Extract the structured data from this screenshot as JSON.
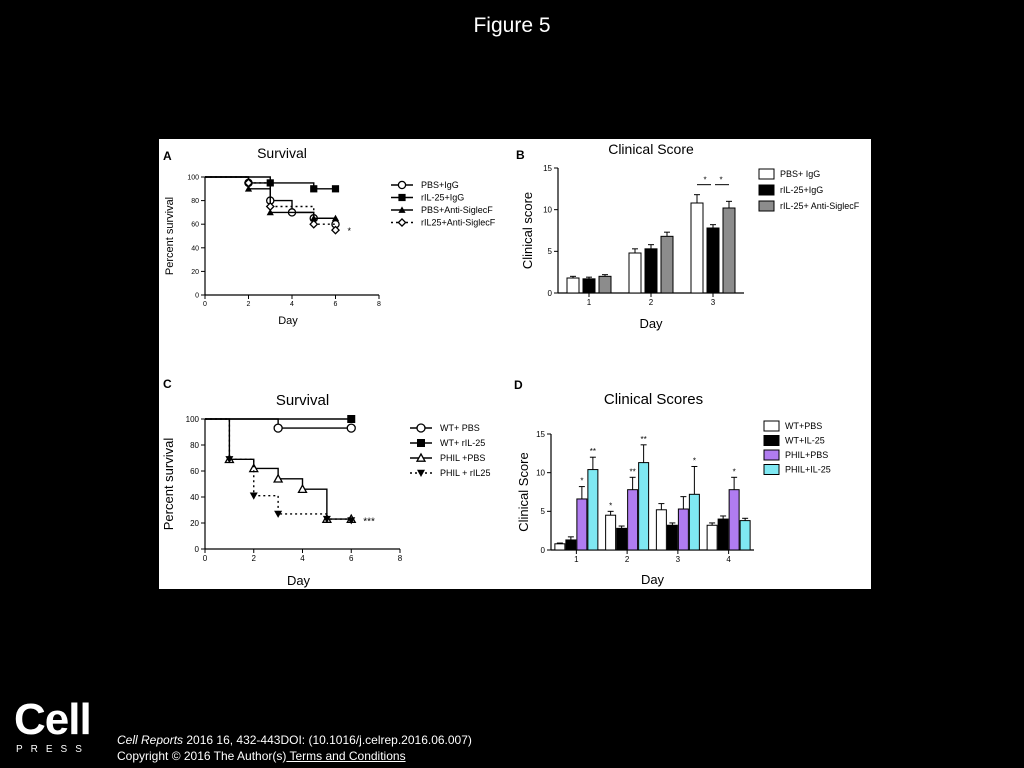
{
  "slide_title": "Figure 5",
  "footer": {
    "logo_word": "Cell",
    "logo_sub": "PRESS",
    "journal": "Cell Reports",
    "citation_rest": " 2016 16, 432-443DOI: (10.1016/j.celrep.2016.06.007)",
    "copyright": "Copyright © 2016 The Author(s)",
    "terms_link": " Terms and Conditions"
  },
  "colors": {
    "white_bar": "#ffffff",
    "black_bar": "#000000",
    "gray_bar": "#8c8c8c",
    "purple_bar": "#b07cf0",
    "cyan_bar": "#7fe8f2"
  },
  "chart_data": [
    {
      "panel": "A",
      "type": "line",
      "title": "Survival",
      "xlabel": "Day",
      "ylabel": "Percent survival",
      "xlim": [
        0,
        8
      ],
      "ylim": [
        0,
        100
      ],
      "xticks": [
        "0",
        "2",
        "4",
        "6",
        "8"
      ],
      "yticks": [
        "0",
        "20",
        "40",
        "60",
        "80",
        "100"
      ],
      "annotation": "*",
      "series": [
        {
          "name": "PBS+IgG",
          "marker": "circle-open",
          "style": "solid",
          "points": [
            [
              0,
              100
            ],
            [
              2,
              95
            ],
            [
              3,
              80
            ],
            [
              4,
              70
            ],
            [
              5,
              65
            ],
            [
              6,
              60
            ]
          ]
        },
        {
          "name": "rIL-25+IgG",
          "marker": "square-filled",
          "style": "solid",
          "points": [
            [
              0,
              100
            ],
            [
              3,
              95
            ],
            [
              5,
              90
            ],
            [
              6,
              90
            ]
          ]
        },
        {
          "name": "PBS+Anti-SiglecF",
          "marker": "triangle-filled",
          "style": "solid",
          "points": [
            [
              0,
              100
            ],
            [
              2,
              90
            ],
            [
              3,
              70
            ],
            [
              5,
              65
            ],
            [
              6,
              65
            ]
          ]
        },
        {
          "name": "rIL25+Anti-SiglecF",
          "marker": "diamond-open",
          "style": "dotted",
          "points": [
            [
              0,
              100
            ],
            [
              2,
              95
            ],
            [
              3,
              75
            ],
            [
              5,
              60
            ],
            [
              6,
              55
            ]
          ]
        }
      ]
    },
    {
      "panel": "B",
      "type": "bar",
      "title": "Clinical Score",
      "xlabel": "Day",
      "ylabel": "Clinical score",
      "ylim": [
        0,
        15
      ],
      "yticks": [
        "0",
        "5",
        "10",
        "15"
      ],
      "categories": [
        "1",
        "2",
        "3"
      ],
      "annotations": [
        "*",
        "*"
      ],
      "series": [
        {
          "name": "PBS+ IgG",
          "color": "#ffffff",
          "values": [
            1.8,
            4.8,
            10.8
          ],
          "errors": [
            0.2,
            0.5,
            1.0
          ]
        },
        {
          "name": "rIL-25+IgG",
          "color": "#000000",
          "values": [
            1.7,
            5.3,
            7.8
          ],
          "errors": [
            0.2,
            0.5,
            0.4
          ]
        },
        {
          "name": "rIL-25+ Anti-SiglecF",
          "color": "#8c8c8c",
          "values": [
            2.0,
            6.8,
            10.2
          ],
          "errors": [
            0.2,
            0.5,
            0.8
          ]
        }
      ]
    },
    {
      "panel": "C",
      "type": "line",
      "title": "Survival",
      "xlabel": "Day",
      "ylabel": "Percent survival",
      "xlim": [
        0,
        8
      ],
      "ylim": [
        0,
        100
      ],
      "xticks": [
        "0",
        "2",
        "4",
        "6",
        "8"
      ],
      "yticks": [
        "0",
        "20",
        "40",
        "60",
        "80",
        "100"
      ],
      "annotation": "***",
      "series": [
        {
          "name": "WT+ PBS",
          "marker": "circle-open",
          "style": "solid",
          "points": [
            [
              0,
              100
            ],
            [
              3,
              93
            ],
            [
              6,
              93
            ]
          ]
        },
        {
          "name": "WT+ rIL-25",
          "marker": "square-filled",
          "style": "solid",
          "points": [
            [
              0,
              100
            ],
            [
              6,
              100
            ]
          ]
        },
        {
          "name": "PHIL +PBS",
          "marker": "triangle-open",
          "style": "solid",
          "points": [
            [
              0,
              100
            ],
            [
              1,
              69
            ],
            [
              2,
              62
            ],
            [
              3,
              54
            ],
            [
              4,
              46
            ],
            [
              5,
              23
            ],
            [
              6,
              23
            ]
          ]
        },
        {
          "name": "PHIL + rIL25",
          "marker": "triangle-down-filled",
          "style": "dotted",
          "points": [
            [
              0,
              100
            ],
            [
              1,
              69
            ],
            [
              2,
              41
            ],
            [
              3,
              27
            ],
            [
              5,
              23
            ],
            [
              6,
              22
            ]
          ]
        }
      ]
    },
    {
      "panel": "D",
      "type": "bar",
      "title": "Clinical Scores",
      "xlabel": "Day",
      "ylabel": "Clinical Score",
      "ylim": [
        0,
        15
      ],
      "yticks": [
        "0",
        "5",
        "10",
        "15"
      ],
      "categories": [
        "1",
        "2",
        "3",
        "4"
      ],
      "series": [
        {
          "name": "WT+PBS",
          "color": "#ffffff",
          "values": [
            0.8,
            4.5,
            5.2,
            3.2
          ],
          "errors": [
            0.1,
            0.5,
            0.8,
            0.3
          ],
          "sig": [
            "",
            "*",
            "",
            ""
          ]
        },
        {
          "name": "WT+IL-25",
          "color": "#000000",
          "values": [
            1.3,
            2.8,
            3.2,
            4.0
          ],
          "errors": [
            0.4,
            0.3,
            0.3,
            0.4
          ],
          "sig": [
            "",
            "",
            "",
            ""
          ]
        },
        {
          "name": "PHIL+PBS",
          "color": "#b07cf0",
          "values": [
            6.6,
            7.8,
            5.3,
            7.8
          ],
          "errors": [
            1.6,
            1.6,
            1.6,
            1.6
          ],
          "sig": [
            "*",
            "**",
            "",
            "*"
          ]
        },
        {
          "name": "PHIL+IL-25",
          "color": "#7fe8f2",
          "values": [
            10.4,
            11.3,
            7.2,
            3.8
          ],
          "errors": [
            1.6,
            2.3,
            3.6,
            0.3
          ],
          "sig": [
            "**",
            "**",
            "*",
            ""
          ]
        }
      ]
    }
  ]
}
